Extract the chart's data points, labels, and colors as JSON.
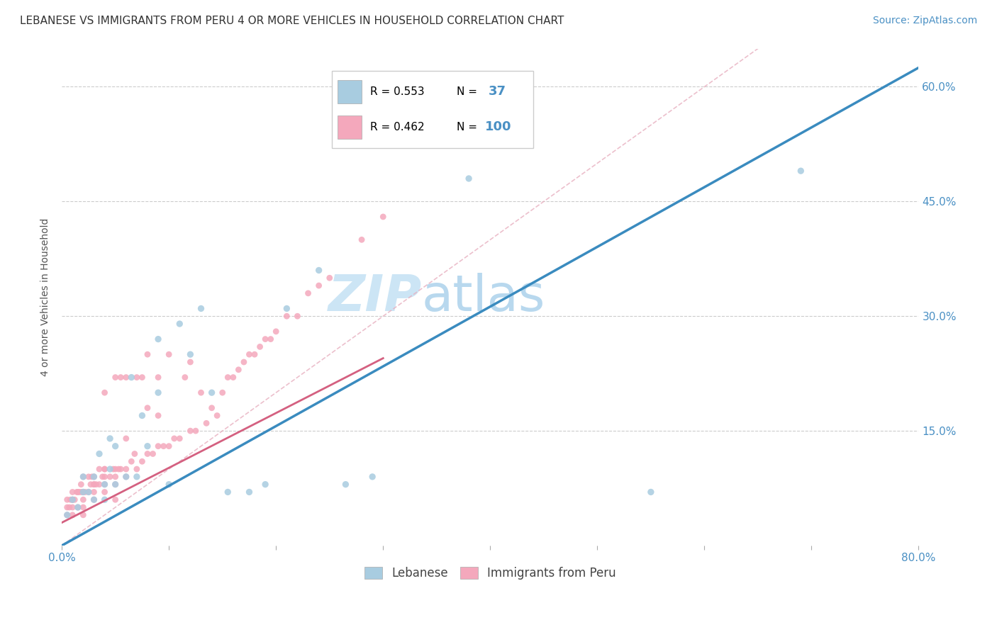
{
  "title": "LEBANESE VS IMMIGRANTS FROM PERU 4 OR MORE VEHICLES IN HOUSEHOLD CORRELATION CHART",
  "source": "Source: ZipAtlas.com",
  "ylabel": "4 or more Vehicles in Household",
  "watermark_top": "ZIP",
  "watermark_bot": "atlas",
  "xlim": [
    0.0,
    0.8
  ],
  "ylim": [
    0.0,
    0.65
  ],
  "xticks": [
    0.0,
    0.1,
    0.2,
    0.3,
    0.4,
    0.5,
    0.6,
    0.7,
    0.8
  ],
  "yticks": [
    0.0,
    0.15,
    0.3,
    0.45,
    0.6
  ],
  "color_blue": "#a8cce0",
  "color_pink": "#f4a8bc",
  "trendline_color_blue": "#3a8bbf",
  "trendline_color_pink": "#d46080",
  "diagonal_color": "#cccccc",
  "blue_points_x": [
    0.005,
    0.01,
    0.015,
    0.02,
    0.02,
    0.025,
    0.03,
    0.03,
    0.035,
    0.04,
    0.04,
    0.045,
    0.045,
    0.05,
    0.05,
    0.06,
    0.065,
    0.07,
    0.075,
    0.08,
    0.09,
    0.09,
    0.1,
    0.11,
    0.12,
    0.13,
    0.14,
    0.155,
    0.175,
    0.19,
    0.21,
    0.24,
    0.265,
    0.29,
    0.38,
    0.55,
    0.69
  ],
  "blue_points_y": [
    0.04,
    0.06,
    0.05,
    0.07,
    0.09,
    0.07,
    0.06,
    0.09,
    0.12,
    0.06,
    0.08,
    0.14,
    0.1,
    0.08,
    0.13,
    0.09,
    0.22,
    0.09,
    0.17,
    0.13,
    0.2,
    0.27,
    0.08,
    0.29,
    0.25,
    0.31,
    0.2,
    0.07,
    0.07,
    0.08,
    0.31,
    0.36,
    0.08,
    0.09,
    0.48,
    0.07,
    0.49
  ],
  "pink_points_x": [
    0.005,
    0.005,
    0.005,
    0.007,
    0.008,
    0.01,
    0.01,
    0.01,
    0.01,
    0.01,
    0.012,
    0.014,
    0.015,
    0.015,
    0.016,
    0.018,
    0.018,
    0.02,
    0.02,
    0.02,
    0.02,
    0.02,
    0.022,
    0.025,
    0.025,
    0.027,
    0.028,
    0.03,
    0.03,
    0.03,
    0.03,
    0.03,
    0.032,
    0.035,
    0.035,
    0.038,
    0.04,
    0.04,
    0.04,
    0.04,
    0.04,
    0.04,
    0.045,
    0.048,
    0.05,
    0.05,
    0.05,
    0.05,
    0.05,
    0.053,
    0.055,
    0.055,
    0.06,
    0.06,
    0.06,
    0.06,
    0.065,
    0.068,
    0.07,
    0.07,
    0.075,
    0.075,
    0.08,
    0.08,
    0.08,
    0.085,
    0.09,
    0.09,
    0.09,
    0.095,
    0.1,
    0.1,
    0.105,
    0.11,
    0.115,
    0.12,
    0.12,
    0.125,
    0.13,
    0.135,
    0.14,
    0.145,
    0.15,
    0.155,
    0.16,
    0.165,
    0.17,
    0.175,
    0.18,
    0.185,
    0.19,
    0.195,
    0.2,
    0.21,
    0.22,
    0.23,
    0.24,
    0.25,
    0.28,
    0.3
  ],
  "pink_points_y": [
    0.04,
    0.05,
    0.06,
    0.05,
    0.06,
    0.04,
    0.05,
    0.06,
    0.06,
    0.07,
    0.06,
    0.07,
    0.05,
    0.07,
    0.07,
    0.07,
    0.08,
    0.04,
    0.05,
    0.06,
    0.07,
    0.09,
    0.07,
    0.07,
    0.09,
    0.08,
    0.09,
    0.06,
    0.07,
    0.08,
    0.08,
    0.09,
    0.08,
    0.08,
    0.1,
    0.09,
    0.07,
    0.08,
    0.09,
    0.1,
    0.1,
    0.2,
    0.09,
    0.1,
    0.06,
    0.08,
    0.09,
    0.1,
    0.22,
    0.1,
    0.1,
    0.22,
    0.09,
    0.1,
    0.14,
    0.22,
    0.11,
    0.12,
    0.1,
    0.22,
    0.11,
    0.22,
    0.12,
    0.18,
    0.25,
    0.12,
    0.13,
    0.17,
    0.22,
    0.13,
    0.13,
    0.25,
    0.14,
    0.14,
    0.22,
    0.15,
    0.24,
    0.15,
    0.2,
    0.16,
    0.18,
    0.17,
    0.2,
    0.22,
    0.22,
    0.23,
    0.24,
    0.25,
    0.25,
    0.26,
    0.27,
    0.27,
    0.28,
    0.3,
    0.3,
    0.33,
    0.34,
    0.35,
    0.4,
    0.43
  ],
  "blue_trend_x0": 0.0,
  "blue_trend_y0": 0.0,
  "blue_trend_x1": 0.8,
  "blue_trend_y1": 0.625,
  "pink_trend_x0": 0.0,
  "pink_trend_y0": 0.03,
  "pink_trend_x1": 0.3,
  "pink_trend_y1": 0.245,
  "title_fontsize": 11,
  "source_fontsize": 10,
  "axis_label_fontsize": 10,
  "tick_fontsize": 11,
  "watermark_fontsize": 52,
  "watermark_color": "#cce5f5",
  "background_color": "#ffffff"
}
